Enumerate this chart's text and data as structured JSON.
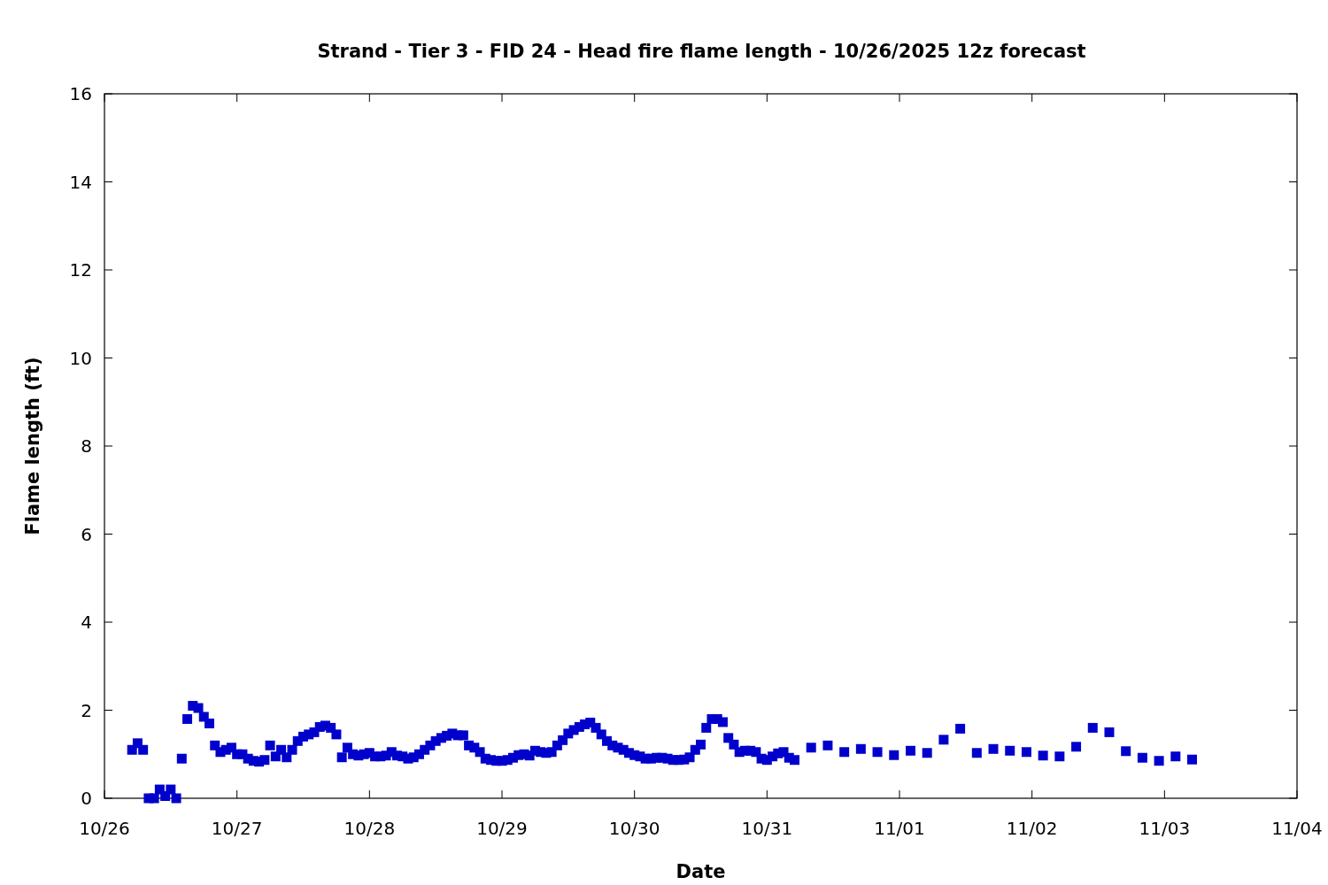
{
  "chart_data": {
    "type": "scatter",
    "title": "Strand - Tier 3 - FID 24 - Head fire flame length - 10/26/2025 12z forecast",
    "xlabel": "Date",
    "ylabel": "Flame length (ft)",
    "x": [
      "2025-10-26T05:00",
      "2025-10-26T06:00",
      "2025-10-26T07:00",
      "2025-10-26T08:00",
      "2025-10-26T09:00",
      "2025-10-26T10:00",
      "2025-10-26T11:00",
      "2025-10-26T12:00",
      "2025-10-26T13:00",
      "2025-10-26T14:00",
      "2025-10-26T15:00",
      "2025-10-26T16:00",
      "2025-10-26T17:00",
      "2025-10-26T18:00",
      "2025-10-26T19:00",
      "2025-10-26T20:00",
      "2025-10-26T21:00",
      "2025-10-26T22:00",
      "2025-10-26T23:00",
      "2025-10-27T00:00",
      "2025-10-27T01:00",
      "2025-10-27T02:00",
      "2025-10-27T03:00",
      "2025-10-27T04:00",
      "2025-10-27T05:00",
      "2025-10-27T06:00",
      "2025-10-27T07:00",
      "2025-10-27T08:00",
      "2025-10-27T09:00",
      "2025-10-27T10:00",
      "2025-10-27T11:00",
      "2025-10-27T12:00",
      "2025-10-27T13:00",
      "2025-10-27T14:00",
      "2025-10-27T15:00",
      "2025-10-27T16:00",
      "2025-10-27T17:00",
      "2025-10-27T18:00",
      "2025-10-27T19:00",
      "2025-10-27T20:00",
      "2025-10-27T21:00",
      "2025-10-27T22:00",
      "2025-10-27T23:00",
      "2025-10-28T00:00",
      "2025-10-28T01:00",
      "2025-10-28T02:00",
      "2025-10-28T03:00",
      "2025-10-28T04:00",
      "2025-10-28T05:00",
      "2025-10-28T06:00",
      "2025-10-28T07:00",
      "2025-10-28T08:00",
      "2025-10-28T09:00",
      "2025-10-28T10:00",
      "2025-10-28T11:00",
      "2025-10-28T12:00",
      "2025-10-28T13:00",
      "2025-10-28T14:00",
      "2025-10-28T15:00",
      "2025-10-28T16:00",
      "2025-10-28T17:00",
      "2025-10-28T18:00",
      "2025-10-28T19:00",
      "2025-10-28T20:00",
      "2025-10-28T21:00",
      "2025-10-28T22:00",
      "2025-10-28T23:00",
      "2025-10-29T00:00",
      "2025-10-29T01:00",
      "2025-10-29T02:00",
      "2025-10-29T03:00",
      "2025-10-29T04:00",
      "2025-10-29T05:00",
      "2025-10-29T06:00",
      "2025-10-29T07:00",
      "2025-10-29T08:00",
      "2025-10-29T09:00",
      "2025-10-29T10:00",
      "2025-10-29T11:00",
      "2025-10-29T12:00",
      "2025-10-29T13:00",
      "2025-10-29T14:00",
      "2025-10-29T15:00",
      "2025-10-29T16:00",
      "2025-10-29T17:00",
      "2025-10-29T18:00",
      "2025-10-29T19:00",
      "2025-10-29T20:00",
      "2025-10-29T21:00",
      "2025-10-29T22:00",
      "2025-10-29T23:00",
      "2025-10-30T00:00",
      "2025-10-30T01:00",
      "2025-10-30T02:00",
      "2025-10-30T03:00",
      "2025-10-30T04:00",
      "2025-10-30T05:00",
      "2025-10-30T06:00",
      "2025-10-30T07:00",
      "2025-10-30T08:00",
      "2025-10-30T09:00",
      "2025-10-30T10:00",
      "2025-10-30T11:00",
      "2025-10-30T12:00",
      "2025-10-30T13:00",
      "2025-10-30T14:00",
      "2025-10-30T15:00",
      "2025-10-30T16:00",
      "2025-10-30T17:00",
      "2025-10-30T18:00",
      "2025-10-30T19:00",
      "2025-10-30T20:00",
      "2025-10-30T21:00",
      "2025-10-30T22:00",
      "2025-10-30T23:00",
      "2025-10-31T00:00",
      "2025-10-31T01:00",
      "2025-10-31T02:00",
      "2025-10-31T03:00",
      "2025-10-31T04:00",
      "2025-10-31T05:00",
      "2025-10-31T08:00",
      "2025-10-31T11:00",
      "2025-10-31T14:00",
      "2025-10-31T17:00",
      "2025-10-31T20:00",
      "2025-10-31T23:00",
      "2025-11-01T02:00",
      "2025-11-01T05:00",
      "2025-11-01T08:00",
      "2025-11-01T11:00",
      "2025-11-01T14:00",
      "2025-11-01T17:00",
      "2025-11-01T20:00",
      "2025-11-01T23:00",
      "2025-11-02T02:00",
      "2025-11-02T05:00",
      "2025-11-02T08:00",
      "2025-11-02T11:00",
      "2025-11-02T14:00",
      "2025-11-02T17:00",
      "2025-11-02T20:00",
      "2025-11-02T23:00",
      "2025-11-03T02:00",
      "2025-11-03T05:00"
    ],
    "series": [
      {
        "color": "#0000cc",
        "values": [
          1.1,
          1.25,
          1.1,
          0,
          0,
          0.2,
          0.05,
          0.2,
          0,
          0.9,
          1.8,
          2.1,
          2.05,
          1.85,
          1.7,
          1.2,
          1.05,
          1.1,
          1.15,
          1.0,
          1.0,
          0.9,
          0.85,
          0.83,
          0.87,
          1.2,
          0.95,
          1.1,
          0.93,
          1.1,
          1.3,
          1.4,
          1.45,
          1.5,
          1.62,
          1.65,
          1.6,
          1.45,
          0.93,
          1.15,
          1.0,
          0.97,
          1.0,
          1.03,
          0.95,
          0.95,
          0.97,
          1.05,
          0.97,
          0.95,
          0.9,
          0.93,
          1.0,
          1.1,
          1.2,
          1.3,
          1.37,
          1.42,
          1.47,
          1.43,
          1.43,
          1.2,
          1.15,
          1.05,
          0.9,
          0.87,
          0.85,
          0.85,
          0.87,
          0.92,
          0.98,
          1.0,
          0.97,
          1.08,
          1.05,
          1.03,
          1.05,
          1.2,
          1.32,
          1.47,
          1.55,
          1.62,
          1.68,
          1.72,
          1.6,
          1.45,
          1.3,
          1.2,
          1.15,
          1.1,
          1.03,
          0.98,
          0.95,
          0.9,
          0.9,
          0.92,
          0.92,
          0.9,
          0.87,
          0.87,
          0.88,
          0.93,
          1.1,
          1.22,
          1.6,
          1.8,
          1.8,
          1.73,
          1.37,
          1.22,
          1.05,
          1.08,
          1.08,
          1.05,
          0.9,
          0.87,
          0.95,
          1.02,
          1.05,
          0.92,
          0.87,
          1.15,
          1.2,
          1.05,
          1.12,
          1.05,
          0.98,
          1.08,
          1.03,
          1.33,
          1.58,
          1.03,
          1.12,
          1.08,
          1.05,
          0.97,
          0.95,
          1.17,
          1.6,
          1.5,
          1.07,
          0.92,
          0.85,
          0.95,
          0.88
        ]
      }
    ],
    "marker": "square",
    "xlim": [
      "2025-10-26",
      "2025-11-04"
    ],
    "xticks": [
      {
        "value": "2025-10-26",
        "label": "10/26"
      },
      {
        "value": "2025-10-27",
        "label": "10/27"
      },
      {
        "value": "2025-10-28",
        "label": "10/28"
      },
      {
        "value": "2025-10-29",
        "label": "10/29"
      },
      {
        "value": "2025-10-30",
        "label": "10/30"
      },
      {
        "value": "2025-10-31",
        "label": "10/31"
      },
      {
        "value": "2025-11-01",
        "label": "11/01"
      },
      {
        "value": "2025-11-02",
        "label": "11/02"
      },
      {
        "value": "2025-11-03",
        "label": "11/03"
      },
      {
        "value": "2025-11-04",
        "label": "11/04"
      }
    ],
    "ylim": [
      0,
      16
    ],
    "yticks": [
      0,
      2,
      4,
      6,
      8,
      10,
      12,
      14,
      16
    ]
  }
}
